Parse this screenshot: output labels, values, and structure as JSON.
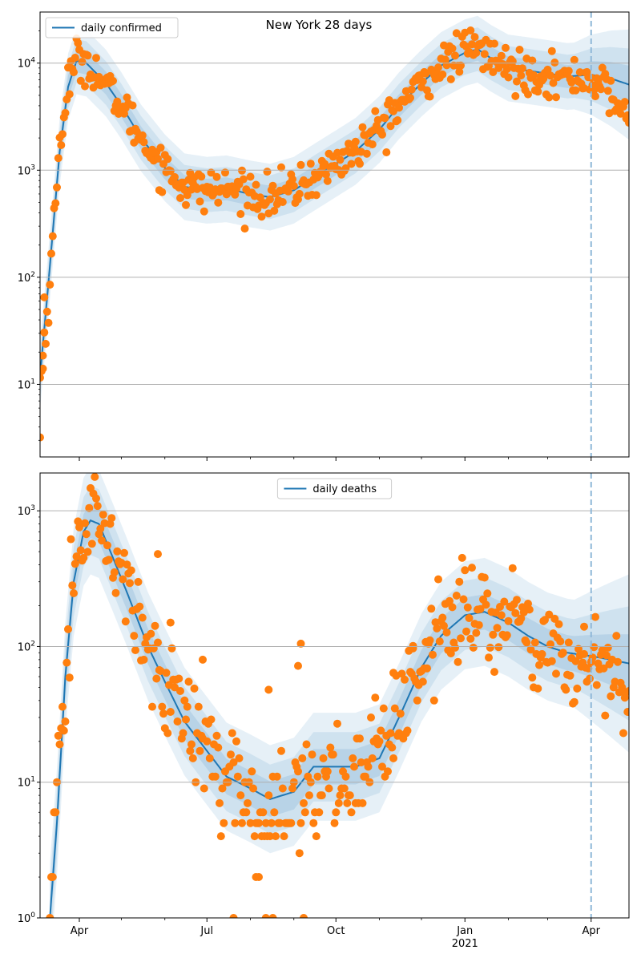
{
  "figure": {
    "title": "New York 28 days",
    "x_axis": {
      "type": "date",
      "range": [
        "2020-03-04",
        "2021-04-28"
      ],
      "ticks": [
        {
          "date": "2020-04-01",
          "label": "Apr",
          "sublabel": ""
        },
        {
          "date": "2020-07-01",
          "label": "Jul",
          "sublabel": ""
        },
        {
          "date": "2020-10-01",
          "label": "Oct",
          "sublabel": ""
        },
        {
          "date": "2021-01-01",
          "label": "Jan",
          "sublabel": "2021"
        },
        {
          "date": "2021-04-01",
          "label": "Apr",
          "sublabel": ""
        }
      ],
      "minor_ticks": [
        "2020-05-01",
        "2020-06-01",
        "2020-08-01",
        "2020-09-01",
        "2020-11-01",
        "2020-12-01",
        "2021-02-01",
        "2021-03-01"
      ]
    },
    "forecast_marker_date": "2021-04-01"
  },
  "colors": {
    "model_line": "#1f77b4",
    "observed_points": "#ff7f0e",
    "band": "#1f77b4",
    "marker_line": "#8fb8d8",
    "grid": "#b0b0b0"
  },
  "chart_data": [
    {
      "type": "line",
      "scale": "log",
      "legend": {
        "label": "daily confirmed",
        "placement": "top-left"
      },
      "ylim": [
        2.1,
        30000
      ],
      "y_ticks": [
        {
          "value": 10,
          "label": "10^1"
        },
        {
          "value": 100,
          "label": "10^2"
        },
        {
          "value": 1000,
          "label": "10^3"
        },
        {
          "value": 10000,
          "label": "10^4"
        }
      ],
      "grid": true,
      "model_knots": [
        [
          "2020-03-04",
          12
        ],
        [
          "2020-03-10",
          90
        ],
        [
          "2020-03-18",
          1500
        ],
        [
          "2020-03-24",
          6000
        ],
        [
          "2020-03-30",
          10500
        ],
        [
          "2020-04-06",
          10000
        ],
        [
          "2020-04-20",
          6500
        ],
        [
          "2020-05-01",
          4000
        ],
        [
          "2020-05-15",
          2000
        ],
        [
          "2020-06-01",
          1050
        ],
        [
          "2020-06-15",
          700
        ],
        [
          "2020-07-01",
          650
        ],
        [
          "2020-07-15",
          670
        ],
        [
          "2020-08-01",
          600
        ],
        [
          "2020-08-15",
          560
        ],
        [
          "2020-09-01",
          650
        ],
        [
          "2020-09-15",
          850
        ],
        [
          "2020-10-01",
          1150
        ],
        [
          "2020-10-15",
          1500
        ],
        [
          "2020-11-01",
          2400
        ],
        [
          "2020-11-15",
          4000
        ],
        [
          "2020-12-01",
          6500
        ],
        [
          "2020-12-15",
          9500
        ],
        [
          "2021-01-01",
          12500
        ],
        [
          "2021-01-10",
          13500
        ],
        [
          "2021-01-20",
          11000
        ],
        [
          "2021-02-01",
          9000
        ],
        [
          "2021-02-15",
          8500
        ],
        [
          "2021-03-01",
          8000
        ],
        [
          "2021-03-15",
          7500
        ],
        [
          "2021-04-01",
          7800
        ],
        [
          "2021-04-15",
          7200
        ],
        [
          "2021-04-28",
          6300
        ]
      ],
      "observed_knots": [
        [
          "2020-03-04",
          11
        ],
        [
          "2020-03-10",
          60
        ],
        [
          "2020-03-18",
          1800
        ],
        [
          "2020-03-24",
          6500
        ],
        [
          "2020-03-30",
          11000
        ],
        [
          "2020-04-06",
          10500
        ],
        [
          "2020-04-20",
          6000
        ],
        [
          "2020-05-01",
          4000
        ],
        [
          "2020-05-15",
          2000
        ],
        [
          "2020-06-01",
          1050
        ],
        [
          "2020-06-15",
          700
        ],
        [
          "2020-07-01",
          650
        ],
        [
          "2020-07-15",
          670
        ],
        [
          "2020-08-01",
          600
        ],
        [
          "2020-08-15",
          560
        ],
        [
          "2020-09-01",
          650
        ],
        [
          "2020-09-15",
          850
        ],
        [
          "2020-10-01",
          1150
        ],
        [
          "2020-10-15",
          1500
        ],
        [
          "2020-11-01",
          2400
        ],
        [
          "2020-11-15",
          4000
        ],
        [
          "2020-12-01",
          6500
        ],
        [
          "2020-12-15",
          9500
        ],
        [
          "2021-01-01",
          13000
        ],
        [
          "2021-01-10",
          14000
        ],
        [
          "2021-01-20",
          11000
        ],
        [
          "2021-02-01",
          9000
        ],
        [
          "2021-02-15",
          8000
        ],
        [
          "2021-03-01",
          8000
        ],
        [
          "2021-03-15",
          7000
        ],
        [
          "2021-03-28",
          7500
        ],
        [
          "2021-04-10",
          6000
        ],
        [
          "2021-04-20",
          4000
        ],
        [
          "2021-04-28",
          3000
        ]
      ],
      "observed_scatter": 0.22,
      "observed_outliers": [
        [
          "2020-03-04",
          3.2
        ],
        [
          "2020-03-06",
          14
        ],
        [
          "2020-03-07",
          65
        ]
      ],
      "band_widths": [
        {
          "label": "inner",
          "factor": 1.28
        },
        {
          "label": "middle",
          "factor": 1.6
        },
        {
          "label": "outer",
          "factor": 2.05
        }
      ]
    },
    {
      "type": "line",
      "scale": "log",
      "legend": {
        "label": "daily deaths",
        "placement": "upper-center"
      },
      "ylim": [
        1,
        1900
      ],
      "y_ticks": [
        {
          "value": 1,
          "label": "10^0"
        },
        {
          "value": 10,
          "label": "10^1"
        },
        {
          "value": 100,
          "label": "10^2"
        },
        {
          "value": 1000,
          "label": "10^3"
        }
      ],
      "grid": true,
      "model_knots": [
        [
          "2020-03-11",
          1
        ],
        [
          "2020-03-16",
          5
        ],
        [
          "2020-03-22",
          60
        ],
        [
          "2020-03-28",
          300
        ],
        [
          "2020-04-04",
          700
        ],
        [
          "2020-04-09",
          850
        ],
        [
          "2020-04-15",
          800
        ],
        [
          "2020-04-25",
          450
        ],
        [
          "2020-05-05",
          250
        ],
        [
          "2020-05-20",
          100
        ],
        [
          "2020-06-01",
          55
        ],
        [
          "2020-06-15",
          28
        ],
        [
          "2020-07-01",
          17
        ],
        [
          "2020-07-15",
          11
        ],
        [
          "2020-08-01",
          9
        ],
        [
          "2020-08-15",
          7.5
        ],
        [
          "2020-09-01",
          8.5
        ],
        [
          "2020-09-15",
          13
        ],
        [
          "2020-10-01",
          13
        ],
        [
          "2020-10-15",
          13
        ],
        [
          "2020-11-01",
          15
        ],
        [
          "2020-11-15",
          30
        ],
        [
          "2020-12-01",
          70
        ],
        [
          "2020-12-15",
          120
        ],
        [
          "2021-01-01",
          170
        ],
        [
          "2021-01-15",
          180
        ],
        [
          "2021-02-01",
          150
        ],
        [
          "2021-02-15",
          120
        ],
        [
          "2021-03-01",
          100
        ],
        [
          "2021-03-15",
          90
        ],
        [
          "2021-04-01",
          85
        ],
        [
          "2021-04-15",
          80
        ],
        [
          "2021-04-28",
          75
        ]
      ],
      "observed_knots": [
        [
          "2020-03-11",
          1
        ],
        [
          "2020-03-15",
          4
        ],
        [
          "2020-03-20",
          28
        ],
        [
          "2020-03-25",
          150
        ],
        [
          "2020-04-01",
          650
        ],
        [
          "2020-04-08",
          1000
        ],
        [
          "2020-04-15",
          800
        ],
        [
          "2020-04-25",
          450
        ],
        [
          "2020-05-05",
          250
        ],
        [
          "2020-05-20",
          100
        ],
        [
          "2020-06-01",
          55
        ],
        [
          "2020-06-15",
          28
        ],
        [
          "2020-07-01",
          17
        ],
        [
          "2020-07-15",
          11
        ],
        [
          "2020-08-01",
          7
        ],
        [
          "2020-08-15",
          6
        ],
        [
          "2020-09-01",
          7
        ],
        [
          "2020-09-15",
          10
        ],
        [
          "2020-10-01",
          10
        ],
        [
          "2020-10-15",
          13
        ],
        [
          "2020-11-01",
          17
        ],
        [
          "2020-11-15",
          35
        ],
        [
          "2020-12-01",
          70
        ],
        [
          "2020-12-15",
          130
        ],
        [
          "2021-01-01",
          170
        ],
        [
          "2021-01-15",
          190
        ],
        [
          "2021-02-01",
          150
        ],
        [
          "2021-02-15",
          120
        ],
        [
          "2021-03-01",
          90
        ],
        [
          "2021-03-15",
          75
        ],
        [
          "2021-04-01",
          75
        ],
        [
          "2021-04-15",
          60
        ],
        [
          "2021-04-28",
          50
        ]
      ],
      "observed_scatter": 0.42,
      "observed_outliers": [
        [
          "2020-05-27",
          480
        ],
        [
          "2020-06-05",
          150
        ],
        [
          "2020-06-28",
          80
        ],
        [
          "2020-08-14",
          48
        ],
        [
          "2020-09-06",
          105
        ],
        [
          "2020-09-04",
          72
        ],
        [
          "2020-11-11",
          64
        ],
        [
          "2020-11-25",
          97
        ],
        [
          "2021-03-27",
          140
        ],
        [
          "2021-04-24",
          23
        ],
        [
          "2020-07-20",
          1
        ],
        [
          "2020-08-12",
          1
        ],
        [
          "2020-08-17",
          1
        ],
        [
          "2020-09-08",
          1
        ],
        [
          "2020-08-05",
          2
        ],
        [
          "2020-08-07",
          2
        ]
      ],
      "band_widths": [
        {
          "label": "inner",
          "factor": 1.35
        },
        {
          "label": "middle",
          "factor": 1.8
        },
        {
          "label": "outer",
          "factor": 2.5
        }
      ]
    }
  ]
}
